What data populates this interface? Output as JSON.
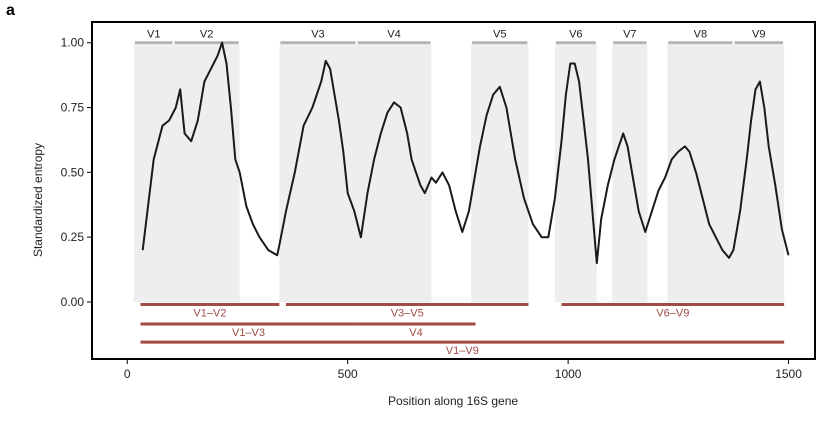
{
  "panel_label": "a",
  "chart_data": {
    "type": "line",
    "title": "",
    "xlabel": "Position along 16S gene",
    "ylabel": "Standardized entropy",
    "xlim": [
      -80,
      1560
    ],
    "ylim": [
      -0.22,
      1.08
    ],
    "xticks": [
      0,
      500,
      1000,
      1500
    ],
    "yticks": [
      0.0,
      0.25,
      0.5,
      0.75,
      1.0
    ],
    "ytick_labels": [
      "0.00",
      "0.25",
      "0.50",
      "0.75",
      "1.00"
    ],
    "variable_regions": [
      {
        "label": "V1",
        "start": 15,
        "end": 105
      },
      {
        "label": "V2",
        "start": 105,
        "end": 255
      },
      {
        "label": "V3",
        "start": 345,
        "end": 520
      },
      {
        "label": "V4",
        "start": 520,
        "end": 690
      },
      {
        "label": "V5",
        "start": 780,
        "end": 910
      },
      {
        "label": "V6",
        "start": 970,
        "end": 1065
      },
      {
        "label": "V7",
        "start": 1100,
        "end": 1180
      },
      {
        "label": "V8",
        "start": 1225,
        "end": 1375
      },
      {
        "label": "V9",
        "start": 1375,
        "end": 1490
      }
    ],
    "amplicons": [
      {
        "label": "V1–V2",
        "start": 30,
        "end": 345,
        "y": -0.01
      },
      {
        "label": "V3–V5",
        "start": 360,
        "end": 910,
        "y": -0.01
      },
      {
        "label": "V6–V9",
        "start": 985,
        "end": 1490,
        "y": -0.01
      },
      {
        "label": "V1–V3",
        "start": 30,
        "end": 520,
        "y": -0.085
      },
      {
        "label": "V4",
        "start": 520,
        "end": 790,
        "y": -0.085
      },
      {
        "label": "V1–V9",
        "start": 30,
        "end": 1490,
        "y": -0.155
      }
    ],
    "series": [
      {
        "name": "entropy",
        "x": [
          35,
          60,
          80,
          95,
          110,
          120,
          130,
          145,
          160,
          175,
          190,
          205,
          215,
          225,
          235,
          245,
          255,
          270,
          285,
          300,
          320,
          340,
          345,
          360,
          380,
          400,
          420,
          440,
          450,
          460,
          470,
          480,
          490,
          500,
          515,
          530,
          545,
          560,
          575,
          590,
          605,
          620,
          635,
          645,
          655,
          665,
          675,
          690,
          700,
          715,
          730,
          745,
          760,
          775,
          790,
          800,
          815,
          830,
          845,
          860,
          870,
          880,
          900,
          920,
          940,
          955,
          970,
          985,
          995,
          1005,
          1015,
          1025,
          1035,
          1045,
          1055,
          1065,
          1075,
          1090,
          1105,
          1115,
          1125,
          1135,
          1145,
          1160,
          1175,
          1190,
          1205,
          1220,
          1235,
          1250,
          1265,
          1275,
          1290,
          1305,
          1320,
          1335,
          1350,
          1365,
          1375,
          1390,
          1405,
          1415,
          1425,
          1435,
          1445,
          1455,
          1470,
          1485,
          1500
        ],
        "values": [
          0.2,
          0.55,
          0.68,
          0.7,
          0.75,
          0.82,
          0.65,
          0.62,
          0.7,
          0.85,
          0.9,
          0.95,
          1.0,
          0.92,
          0.75,
          0.55,
          0.5,
          0.37,
          0.3,
          0.25,
          0.2,
          0.18,
          0.22,
          0.35,
          0.5,
          0.68,
          0.75,
          0.85,
          0.93,
          0.9,
          0.8,
          0.7,
          0.58,
          0.42,
          0.35,
          0.25,
          0.42,
          0.55,
          0.65,
          0.73,
          0.77,
          0.75,
          0.65,
          0.55,
          0.5,
          0.45,
          0.42,
          0.48,
          0.46,
          0.5,
          0.45,
          0.35,
          0.27,
          0.35,
          0.5,
          0.6,
          0.72,
          0.8,
          0.83,
          0.75,
          0.65,
          0.55,
          0.4,
          0.3,
          0.25,
          0.25,
          0.4,
          0.62,
          0.8,
          0.92,
          0.92,
          0.85,
          0.7,
          0.55,
          0.35,
          0.15,
          0.32,
          0.45,
          0.55,
          0.6,
          0.65,
          0.6,
          0.5,
          0.35,
          0.27,
          0.35,
          0.43,
          0.48,
          0.55,
          0.58,
          0.6,
          0.58,
          0.5,
          0.4,
          0.3,
          0.25,
          0.2,
          0.17,
          0.2,
          0.35,
          0.55,
          0.7,
          0.82,
          0.85,
          0.75,
          0.6,
          0.45,
          0.28,
          0.18
        ]
      }
    ]
  },
  "colors": {
    "line": "#1a1a1a",
    "region_fill": "#eeeeee",
    "region_bar": "#b3b3b3",
    "amplicon": "#a24b45",
    "frame": "#000000"
  }
}
